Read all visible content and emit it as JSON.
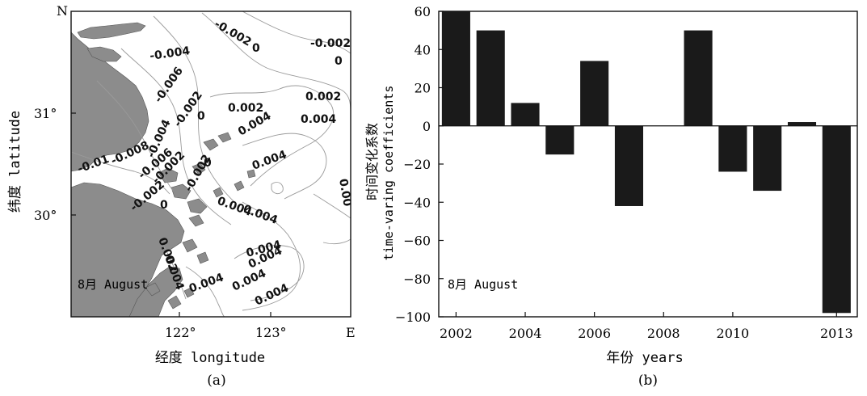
{
  "panel_a": {
    "corner_n": "N",
    "corner_e": "E",
    "x_ticks": [
      "122°",
      "123°"
    ],
    "y_ticks": [
      "31°",
      "30°"
    ],
    "xlabel": "经度 longitude",
    "ylabel": "纬度 latitude",
    "annotation": "8月 August",
    "caption": "(a)",
    "contour_labels": [
      "-0.002",
      "0",
      "-0.002",
      "0",
      "-0.004",
      "-0.006",
      "-0.002",
      "0",
      "0.002",
      "0.002",
      "0.004",
      "0.004",
      "-0.01",
      "-0.008",
      "-0.004",
      "-0.006",
      "-0.002",
      "0.004",
      "-0.002",
      "0",
      "-0.002",
      "0",
      "0.004",
      "0.004",
      "0.004",
      "0.002",
      "0.004",
      "0.004",
      "0.004",
      "0.004",
      "0.004",
      "0.00"
    ],
    "colors": {
      "land": "#8c8c8c",
      "contour": "#9a9a9a"
    }
  },
  "chart_data": {
    "type": "bar",
    "x": [
      2002,
      2003,
      2004,
      2005,
      2006,
      2007,
      2009,
      2010,
      2011,
      2012,
      2013
    ],
    "values": [
      60,
      50,
      12,
      -15,
      34,
      -42,
      50,
      -24,
      -34,
      2,
      -98
    ],
    "x_ticks": [
      "2002",
      "2004",
      "2006",
      "2008",
      "2010",
      "2013"
    ],
    "y_ticks": [
      "60",
      "40",
      "20",
      "0",
      "−20",
      "−40",
      "−60",
      "−80",
      "−100"
    ],
    "xlim": [
      2001.5,
      2013.6
    ],
    "ylim": [
      -100,
      60
    ],
    "xlabel": "年份 years",
    "ylabel_line1": "时间变化系数",
    "ylabel_line2": "time-varing coefficients",
    "annotation": "8月 August",
    "caption": "(b)",
    "bar_color": "#1a1a1a"
  }
}
